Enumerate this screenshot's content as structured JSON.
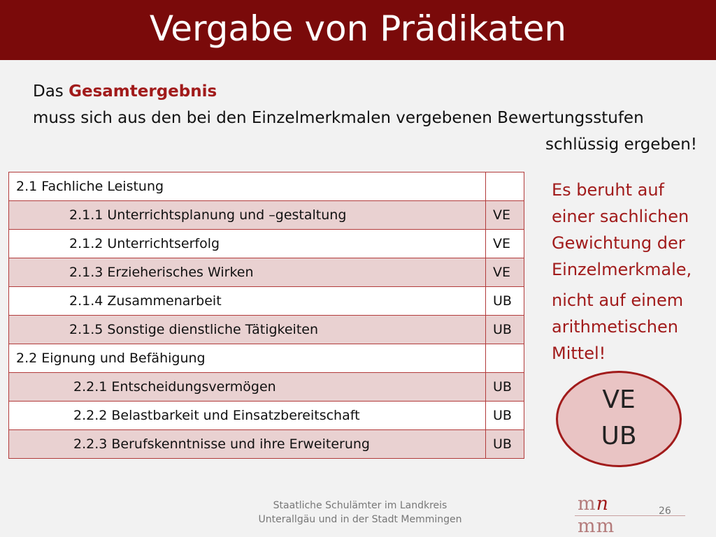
{
  "title": "Vergabe von Prädikaten",
  "intro": {
    "prefix": "Das ",
    "highlight": "Gesamtergebnis",
    "line2": "muss sich aus den bei den Einzelmerkmalen vergebenen Bewertungsstufen",
    "line3": "schlüssig ergeben!"
  },
  "table": {
    "rows": [
      {
        "label": "2.1 Fachliche Leistung",
        "grade": ""
      },
      {
        "label": "2.1.1 Unterrichtsplanung und –gestaltung",
        "grade": "VE"
      },
      {
        "label": "2.1.2  Unterrichtserfolg",
        "grade": "VE"
      },
      {
        "label": "2.1.3  Erzieherisches Wirken",
        "grade": "VE"
      },
      {
        "label": "2.1.4  Zusammenarbeit",
        "grade": "UB"
      },
      {
        "label": "2.1.5  Sonstige dienstliche Tätigkeiten",
        "grade": "UB"
      },
      {
        "label": "2.2 Eignung und Befähigung",
        "grade": ""
      },
      {
        "label": "2.2.1  Entscheidungsvermögen",
        "grade": "UB"
      },
      {
        "label": "2.2.2  Belastbarkeit und Einsatzbereitschaft",
        "grade": "UB"
      },
      {
        "label": "2.2.3  Berufskenntnisse und ihre Erweiterung",
        "grade": "UB"
      }
    ]
  },
  "note": {
    "p1": [
      "Es beruht auf",
      "einer sachlichen",
      "Gewichtung der",
      "Einzelmerkmale,"
    ],
    "p2": [
      "nicht auf einem",
      "arithmetischen",
      "Mittel!"
    ]
  },
  "oval": {
    "line1": "VE",
    "line2": "UB"
  },
  "footer": {
    "line1": "Staatliche Schulämter im Landkreis",
    "line2": "Unterallgäu und in der Stadt Memmingen"
  },
  "logo": {
    "top_a": "m",
    "top_b": "n",
    "bottom": "mm"
  },
  "page_number": "26",
  "colors": {
    "accent": "#7a0a0a",
    "highlight": "#a11b1b",
    "row_pink": "#e9d1d1"
  }
}
